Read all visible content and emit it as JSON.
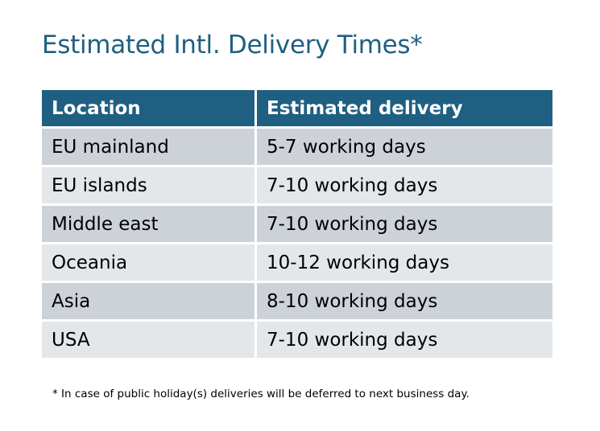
{
  "title": "Estimated Intl. Delivery Times*",
  "table": {
    "headers": [
      "Location",
      "Estimated delivery"
    ],
    "rows": [
      [
        "EU mainland",
        "5-7 working days"
      ],
      [
        "EU islands",
        "7-10 working days"
      ],
      [
        "Middle east",
        "7-10 working days"
      ],
      [
        "Oceania",
        "10-12 working days"
      ],
      [
        "Asia",
        "8-10 working days"
      ],
      [
        "USA",
        "7-10 working days"
      ]
    ]
  },
  "footnote": "* In case of public holiday(s) deliveries will be deferred to next business day.",
  "colors": {
    "header": "#1f5f82",
    "row_dark": "#cdd2d9",
    "row_light": "#e4e7ea"
  }
}
